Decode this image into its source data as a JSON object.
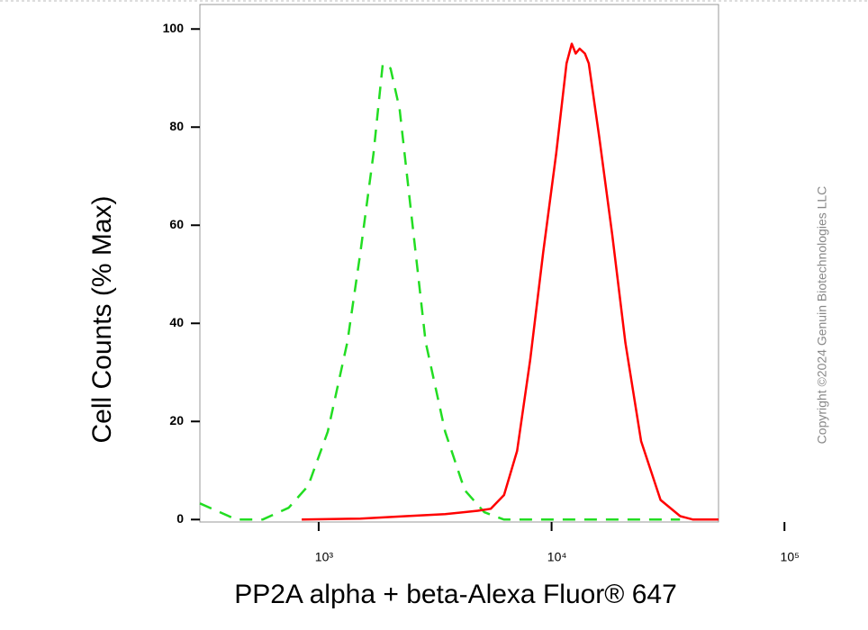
{
  "chart_data": {
    "type": "line",
    "x_label": "PP2A alpha + beta-Alexa Fluor® 647",
    "y_label": "Cell Counts (% Max)",
    "watermark": "Copyright ©2024 Genuin Biotechnologies LLC",
    "x_scale": "log",
    "xlim": [
      309,
      52100
    ],
    "ylim": [
      -0.5,
      105
    ],
    "xticks": [
      {
        "value": 1000,
        "label": "10³"
      },
      {
        "value": 10000,
        "label": "10⁴"
      },
      {
        "value": 100000,
        "label": "10⁵"
      }
    ],
    "yticks": [
      0,
      20,
      40,
      60,
      80,
      100
    ],
    "series": [
      {
        "color": "#22dd22",
        "dashed": true,
        "x": [
          309,
          444,
          574,
          743,
          902,
          1094,
          1328,
          1511,
          1719,
          1884,
          2034,
          2225,
          2531,
          2878,
          3492,
          4236,
          5139,
          6250,
          35600
        ],
        "values": [
          3.3,
          0,
          0,
          2.4,
          6.9,
          17.9,
          36.2,
          54.5,
          74.6,
          92.9,
          92,
          83.7,
          60,
          36.2,
          17.9,
          6,
          1.5,
          0,
          0
        ]
      },
      {
        "color": "#ff0000",
        "dashed": false,
        "x": [
          846,
          1511,
          2371,
          3492,
          4820,
          5483,
          6250,
          7112,
          8093,
          9206,
          10470,
          11590,
          12210,
          12700,
          13190,
          13900,
          14450,
          16010,
          18230,
          20750,
          24230,
          29380,
          35650,
          40550,
          52100
        ],
        "values": [
          0,
          0.2,
          0.7,
          1.1,
          1.8,
          2.2,
          5,
          14,
          32.5,
          54.5,
          74.6,
          93,
          97,
          95,
          96,
          95,
          93,
          78,
          58,
          36,
          16,
          4,
          0.7,
          0,
          0
        ]
      }
    ]
  }
}
